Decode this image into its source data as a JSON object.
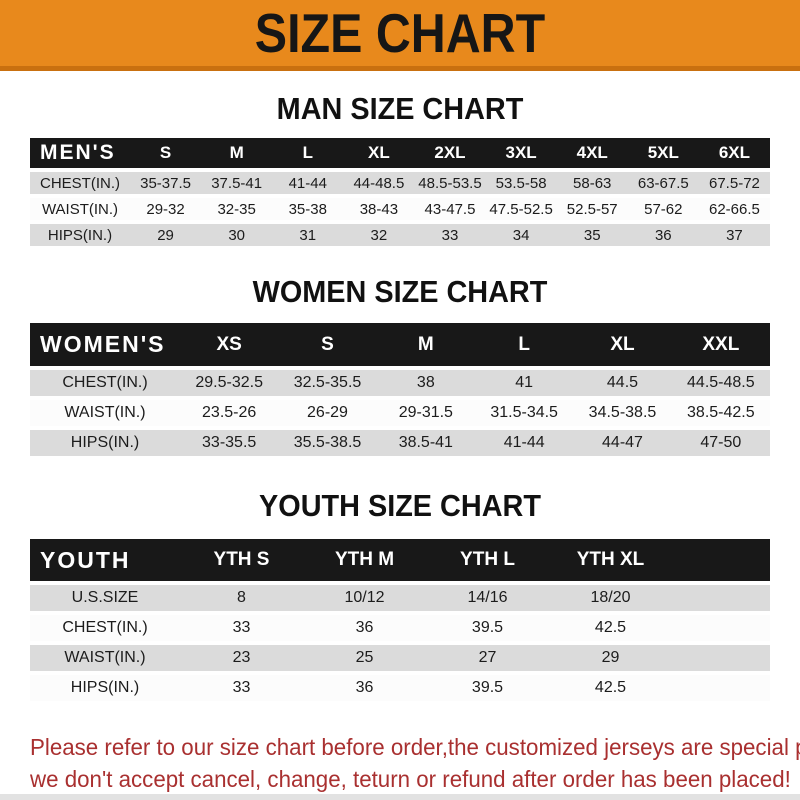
{
  "banner": {
    "title": "SIZE CHART"
  },
  "colors": {
    "banner_bg": "#E8891C",
    "banner_border": "#C9700F",
    "header_bg": "#181818",
    "row_alt": "#DBDBDB",
    "warn_text": "#A93030"
  },
  "sections": [
    {
      "heading": "MAN SIZE CHART",
      "corner_label": "MEN'S",
      "columns": [
        "S",
        "M",
        "L",
        "XL",
        "2XL",
        "3XL",
        "4XL",
        "5XL",
        "6XL"
      ],
      "rows": [
        {
          "label": "CHEST(IN.)",
          "values": [
            "35-37.5",
            "37.5-41",
            "41-44",
            "44-48.5",
            "48.5-53.5",
            "53.5-58",
            "58-63",
            "63-67.5",
            "67.5-72"
          ]
        },
        {
          "label": "WAIST(IN.)",
          "values": [
            "29-32",
            "32-35",
            "35-38",
            "38-43",
            "43-47.5",
            "47.5-52.5",
            "52.5-57",
            "57-62",
            "62-66.5"
          ]
        },
        {
          "label": "HIPS(IN.)",
          "values": [
            "29",
            "30",
            "31",
            "32",
            "33",
            "34",
            "35",
            "36",
            "37"
          ]
        }
      ]
    },
    {
      "heading": "WOMEN SIZE CHART",
      "corner_label": "WOMEN'S",
      "columns": [
        "XS",
        "S",
        "M",
        "L",
        "XL",
        "XXL"
      ],
      "rows": [
        {
          "label": "CHEST(IN.)",
          "values": [
            "29.5-32.5",
            "32.5-35.5",
            "38",
            "41",
            "44.5",
            "44.5-48.5"
          ]
        },
        {
          "label": "WAIST(IN.)",
          "values": [
            "23.5-26",
            "26-29",
            "29-31.5",
            "31.5-34.5",
            "34.5-38.5",
            "38.5-42.5"
          ]
        },
        {
          "label": "HIPS(IN.)",
          "values": [
            "33-35.5",
            "35.5-38.5",
            "38.5-41",
            "41-44",
            "44-47",
            "47-50"
          ]
        }
      ]
    },
    {
      "heading": "YOUTH SIZE CHART",
      "corner_label": "YOUTH",
      "columns": [
        "YTH S",
        "YTH M",
        "YTH L",
        "YTH XL"
      ],
      "rows": [
        {
          "label": "U.S.SIZE",
          "values": [
            "8",
            "10/12",
            "14/16",
            "18/20"
          ]
        },
        {
          "label": "CHEST(IN.)",
          "values": [
            "33",
            "36",
            "39.5",
            "42.5"
          ]
        },
        {
          "label": "WAIST(IN.)",
          "values": [
            "23",
            "25",
            "27",
            "29"
          ]
        },
        {
          "label": "HIPS(IN.)",
          "values": [
            "33",
            "36",
            "39.5",
            "42.5"
          ]
        }
      ]
    }
  ],
  "footer": {
    "line1": "Please refer to our size chart before order,the customized jerseys are special products,",
    "line2": "we don't accept cancel, change, teturn or refund after order has been placed!"
  }
}
